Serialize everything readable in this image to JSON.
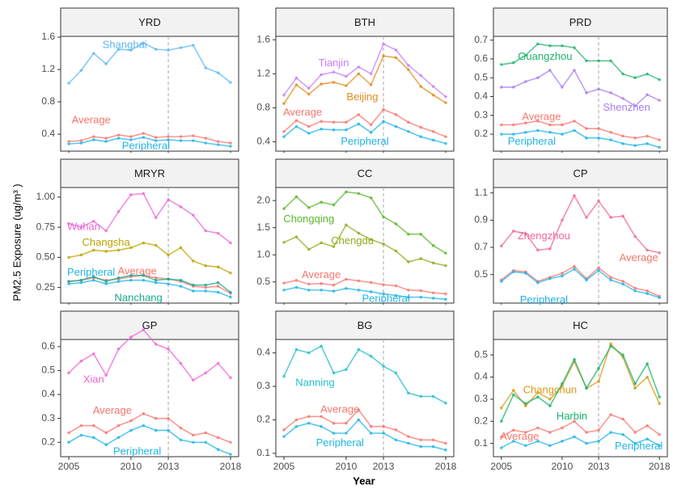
{
  "x_label": "Year",
  "y_label": "PM2.5 Exposure (ug/m³ )",
  "chart_data": [
    {
      "type": "line",
      "title": "YRD",
      "x": [
        2005,
        2006,
        2007,
        2008,
        2009,
        2010,
        2011,
        2012,
        2013,
        2014,
        2015,
        2016,
        2017,
        2018
      ],
      "xlim": [
        2004.35,
        2018.65
      ],
      "xticks": [
        2005,
        2010,
        2013,
        2018
      ],
      "vline": 2013,
      "ylim": [
        0.19,
        1.61
      ],
      "yticks": [
        0.4,
        0.8,
        1.2,
        1.6
      ],
      "series": [
        {
          "name": "Shanghai",
          "color": "#5bb8f0",
          "values": [
            1.03,
            1.19,
            1.4,
            1.27,
            1.45,
            1.44,
            1.53,
            1.45,
            1.44,
            1.47,
            1.5,
            1.22,
            1.16,
            1.04
          ]
        },
        {
          "name": "Average",
          "color": "#f8766d",
          "values": [
            0.31,
            0.32,
            0.37,
            0.35,
            0.39,
            0.37,
            0.41,
            0.36,
            0.37,
            0.37,
            0.38,
            0.35,
            0.31,
            0.29
          ]
        },
        {
          "name": "Peripheral",
          "color": "#1fb4e8",
          "values": [
            0.28,
            0.29,
            0.33,
            0.31,
            0.35,
            0.33,
            0.36,
            0.32,
            0.33,
            0.32,
            0.32,
            0.29,
            0.27,
            0.25
          ]
        }
      ]
    },
    {
      "type": "line",
      "title": "BTH",
      "x": [
        2005,
        2006,
        2007,
        2008,
        2009,
        2010,
        2011,
        2012,
        2013,
        2014,
        2015,
        2016,
        2017,
        2018
      ],
      "xlim": [
        2004.35,
        2018.65
      ],
      "xticks": [
        2005,
        2010,
        2013,
        2018
      ],
      "vline": 2013,
      "ylim": [
        0.29,
        1.64
      ],
      "yticks": [
        0.4,
        0.8,
        1.2,
        1.6
      ],
      "series": [
        {
          "name": "Tianjin",
          "color": "#c77cff",
          "values": [
            0.95,
            1.15,
            1.03,
            1.19,
            1.22,
            1.17,
            1.28,
            1.2,
            1.55,
            1.48,
            1.3,
            1.18,
            1.05,
            0.93
          ]
        },
        {
          "name": "Beijing",
          "color": "#e08b1c",
          "values": [
            0.85,
            1.07,
            0.96,
            1.08,
            1.1,
            1.06,
            1.2,
            1.07,
            1.41,
            1.39,
            1.25,
            1.05,
            0.95,
            0.86
          ]
        },
        {
          "name": "Average",
          "color": "#f8766d",
          "values": [
            0.52,
            0.65,
            0.58,
            0.64,
            0.63,
            0.63,
            0.72,
            0.6,
            0.78,
            0.72,
            0.63,
            0.57,
            0.52,
            0.46
          ]
        },
        {
          "name": "Peripheral",
          "color": "#1fb4e8",
          "values": [
            0.46,
            0.58,
            0.5,
            0.55,
            0.54,
            0.54,
            0.61,
            0.51,
            0.64,
            0.58,
            0.52,
            0.46,
            0.42,
            0.38
          ]
        }
      ]
    },
    {
      "type": "line",
      "title": "PRD",
      "x": [
        2005,
        2006,
        2007,
        2008,
        2009,
        2010,
        2011,
        2012,
        2013,
        2014,
        2015,
        2016,
        2017,
        2018
      ],
      "xlim": [
        2004.35,
        2018.65
      ],
      "xticks": [
        2005,
        2010,
        2013,
        2018
      ],
      "vline": 2013,
      "ylim": [
        0.11,
        0.72
      ],
      "yticks": [
        0.2,
        0.3,
        0.4,
        0.5,
        0.6,
        0.7
      ],
      "series": [
        {
          "name": "Guangzhou",
          "color": "#1fb36a",
          "values": [
            0.57,
            0.58,
            0.62,
            0.68,
            0.67,
            0.67,
            0.66,
            0.59,
            0.59,
            0.59,
            0.52,
            0.5,
            0.52,
            0.49
          ]
        },
        {
          "name": "Shenzhen",
          "color": "#a97ef0",
          "values": [
            0.45,
            0.45,
            0.48,
            0.5,
            0.54,
            0.45,
            0.54,
            0.42,
            0.44,
            0.42,
            0.39,
            0.35,
            0.41,
            0.38
          ]
        },
        {
          "name": "Average",
          "color": "#f8766d",
          "values": [
            0.25,
            0.25,
            0.26,
            0.27,
            0.25,
            0.25,
            0.27,
            0.23,
            0.23,
            0.21,
            0.19,
            0.18,
            0.19,
            0.17
          ]
        },
        {
          "name": "Peripheral",
          "color": "#1fb4e8",
          "values": [
            0.2,
            0.2,
            0.21,
            0.22,
            0.21,
            0.2,
            0.22,
            0.18,
            0.18,
            0.17,
            0.15,
            0.14,
            0.15,
            0.13
          ]
        }
      ]
    },
    {
      "type": "line",
      "title": "MRYR",
      "x": [
        2005,
        2006,
        2007,
        2008,
        2009,
        2010,
        2011,
        2012,
        2013,
        2014,
        2015,
        2016,
        2017,
        2018
      ],
      "xlim": [
        2004.35,
        2018.65
      ],
      "xticks": [
        2005,
        2010,
        2013,
        2018
      ],
      "vline": 2013,
      "ylim": [
        0.12,
        1.08
      ],
      "yticks": [
        0.25,
        {
          "value": 0.5,
          "label": "0.50"
        },
        0.75,
        {
          "value": 1,
          "label": "1.00"
        }
      ],
      "series": [
        {
          "name": "Wuhan",
          "color": "#e96ad6",
          "values": [
            0.78,
            0.75,
            0.8,
            0.72,
            0.88,
            1.02,
            1.03,
            0.83,
            0.98,
            0.92,
            0.85,
            0.72,
            0.7,
            0.62
          ]
        },
        {
          "name": "Changsha",
          "color": "#b8a400",
          "values": [
            0.5,
            0.52,
            0.56,
            0.55,
            0.56,
            0.58,
            0.62,
            0.6,
            0.52,
            0.58,
            0.47,
            0.43,
            0.42,
            0.37
          ]
        },
        {
          "name": "Peripheral",
          "color": "#1fb4e8",
          "values": [
            0.28,
            0.29,
            0.31,
            0.28,
            0.3,
            0.31,
            0.31,
            0.29,
            0.28,
            0.26,
            0.22,
            0.22,
            0.21,
            0.17
          ]
        },
        {
          "name": "Average",
          "color": "#f8766d",
          "values": [
            0.3,
            0.31,
            0.33,
            0.31,
            0.32,
            0.34,
            0.35,
            0.33,
            0.32,
            0.3,
            0.26,
            0.25,
            0.26,
            0.2
          ]
        },
        {
          "name": "Nanchang",
          "color": "#17a98e",
          "values": [
            0.3,
            0.31,
            0.34,
            0.3,
            0.33,
            0.35,
            0.35,
            0.31,
            0.32,
            0.31,
            0.27,
            0.27,
            0.29,
            0.21
          ]
        }
      ]
    },
    {
      "type": "line",
      "title": "CC",
      "x": [
        2005,
        2006,
        2007,
        2008,
        2009,
        2010,
        2011,
        2012,
        2013,
        2014,
        2015,
        2016,
        2017,
        2018
      ],
      "xlim": [
        2004.35,
        2018.65
      ],
      "xticks": [
        2005,
        2010,
        2013,
        2018
      ],
      "vline": 2013,
      "ylim": [
        0.11,
        2.24
      ],
      "yticks": [
        0.5,
        {
          "value": 1,
          "label": "1.0"
        },
        1.5,
        {
          "value": 2,
          "label": "2.0"
        }
      ],
      "series": [
        {
          "name": "Chongqing",
          "color": "#5bb52a",
          "values": [
            1.85,
            2.07,
            1.87,
            1.97,
            1.92,
            2.16,
            2.13,
            2.05,
            1.7,
            1.57,
            1.38,
            1.38,
            1.17,
            1.03
          ]
        },
        {
          "name": "Chengdu",
          "color": "#93a81c",
          "values": [
            1.23,
            1.33,
            1.1,
            1.22,
            1.15,
            1.55,
            1.4,
            1.28,
            1.2,
            1.07,
            0.87,
            0.93,
            0.85,
            0.8
          ]
        },
        {
          "name": "Average",
          "color": "#f8766d",
          "values": [
            0.48,
            0.53,
            0.46,
            0.47,
            0.44,
            0.55,
            0.52,
            0.49,
            0.45,
            0.43,
            0.35,
            0.34,
            0.3,
            0.28
          ]
        },
        {
          "name": "Peripheral",
          "color": "#1fb4e8",
          "values": [
            0.35,
            0.4,
            0.35,
            0.35,
            0.33,
            0.38,
            0.35,
            0.32,
            0.28,
            0.25,
            0.22,
            0.22,
            0.2,
            0.18
          ]
        }
      ]
    },
    {
      "type": "line",
      "title": "CP",
      "x": [
        2005,
        2006,
        2007,
        2008,
        2009,
        2010,
        2011,
        2012,
        2013,
        2014,
        2015,
        2016,
        2017,
        2018
      ],
      "xlim": [
        2004.35,
        2018.65
      ],
      "xticks": [
        2005,
        2010,
        2013,
        2018
      ],
      "vline": 2013,
      "ylim": [
        0.29,
        1.14
      ],
      "yticks": [
        0.5,
        0.7,
        0.9,
        1.1
      ],
      "series": [
        {
          "name": "Zhengzhou",
          "color": "#f0679a",
          "values": [
            0.71,
            0.82,
            0.8,
            0.68,
            0.69,
            0.9,
            1.08,
            0.92,
            1.04,
            0.92,
            0.93,
            0.78,
            0.68,
            0.66
          ]
        },
        {
          "name": "Average",
          "color": "#f8766d",
          "values": [
            0.46,
            0.53,
            0.52,
            0.45,
            0.48,
            0.51,
            0.56,
            0.47,
            0.55,
            0.48,
            0.45,
            0.4,
            0.38,
            0.34
          ]
        },
        {
          "name": "Peripheral",
          "color": "#1fb4e8",
          "values": [
            0.45,
            0.52,
            0.51,
            0.44,
            0.47,
            0.49,
            0.54,
            0.46,
            0.53,
            0.46,
            0.43,
            0.38,
            0.36,
            0.33
          ]
        }
      ]
    },
    {
      "type": "line",
      "title": "GP",
      "x": [
        2005,
        2006,
        2007,
        2008,
        2009,
        2010,
        2011,
        2012,
        2013,
        2014,
        2015,
        2016,
        2017,
        2018
      ],
      "xlim": [
        2004.35,
        2018.65
      ],
      "xticks": [
        2005,
        2010,
        2013,
        2018
      ],
      "vline": 2013,
      "ylim": [
        0.14,
        0.63
      ],
      "yticks": [
        0.2,
        0.3,
        0.4,
        0.5,
        0.6
      ],
      "series": [
        {
          "name": "Xian",
          "color": "#f066d4",
          "values": [
            0.49,
            0.54,
            0.57,
            0.48,
            0.59,
            0.64,
            0.67,
            0.61,
            0.59,
            0.53,
            0.46,
            0.49,
            0.53,
            0.47
          ]
        },
        {
          "name": "Average",
          "color": "#f8766d",
          "values": [
            0.24,
            0.27,
            0.27,
            0.24,
            0.27,
            0.29,
            0.32,
            0.3,
            0.3,
            0.26,
            0.23,
            0.24,
            0.22,
            0.2
          ]
        },
        {
          "name": "Peripheral",
          "color": "#1fb4e8",
          "values": [
            0.2,
            0.23,
            0.22,
            0.19,
            0.22,
            0.25,
            0.27,
            0.25,
            0.25,
            0.21,
            0.2,
            0.2,
            0.17,
            0.15
          ]
        }
      ]
    },
    {
      "type": "line",
      "title": "BG",
      "x": [
        2005,
        2006,
        2007,
        2008,
        2009,
        2010,
        2011,
        2012,
        2013,
        2014,
        2015,
        2016,
        2017,
        2018
      ],
      "xlim": [
        2004.35,
        2018.65
      ],
      "xticks": [
        2005,
        2010,
        2013,
        2018
      ],
      "vline": 2013,
      "ylim": [
        0.09,
        0.44
      ],
      "yticks": [
        0.1,
        0.2,
        0.3,
        0.4
      ],
      "series": [
        {
          "name": "Nanning",
          "color": "#22c0c8",
          "values": [
            0.33,
            0.41,
            0.4,
            0.42,
            0.34,
            0.35,
            0.41,
            0.39,
            0.36,
            0.34,
            0.28,
            0.27,
            0.27,
            0.25
          ]
        },
        {
          "name": "Average",
          "color": "#f8766d",
          "values": [
            0.17,
            0.2,
            0.21,
            0.21,
            0.19,
            0.19,
            0.23,
            0.18,
            0.18,
            0.17,
            0.15,
            0.14,
            0.14,
            0.13
          ]
        },
        {
          "name": "Peripheral",
          "color": "#1fb4e8",
          "values": [
            0.15,
            0.18,
            0.19,
            0.18,
            0.16,
            0.16,
            0.2,
            0.16,
            0.16,
            0.14,
            0.13,
            0.12,
            0.12,
            0.11
          ]
        }
      ]
    },
    {
      "type": "line",
      "title": "HC",
      "x": [
        2005,
        2006,
        2007,
        2008,
        2009,
        2010,
        2011,
        2012,
        2013,
        2014,
        2015,
        2016,
        2017,
        2018
      ],
      "xlim": [
        2004.35,
        2018.65
      ],
      "xticks": [
        2005,
        2010,
        2013,
        2018
      ],
      "vline": 2013,
      "ylim": [
        0.04,
        0.57
      ],
      "yticks": [
        0.1,
        0.2,
        0.3,
        0.4,
        0.5
      ],
      "series": [
        {
          "name": "Changchun",
          "color": "#d99a12",
          "values": [
            0.26,
            0.34,
            0.27,
            0.33,
            0.3,
            0.36,
            0.47,
            0.35,
            0.38,
            0.55,
            0.49,
            0.35,
            0.4,
            0.28
          ]
        },
        {
          "name": "Harbin",
          "color": "#19b46e",
          "values": [
            0.2,
            0.32,
            0.28,
            0.31,
            0.27,
            0.37,
            0.48,
            0.35,
            0.44,
            0.54,
            0.5,
            0.37,
            0.46,
            0.31
          ]
        },
        {
          "name": "Average",
          "color": "#f8766d",
          "values": [
            0.13,
            0.16,
            0.15,
            0.17,
            0.15,
            0.17,
            0.2,
            0.15,
            0.16,
            0.23,
            0.21,
            0.15,
            0.18,
            0.14
          ]
        },
        {
          "name": "Peripheral",
          "color": "#1fb4e8",
          "values": [
            0.08,
            0.11,
            0.09,
            0.11,
            0.09,
            0.11,
            0.13,
            0.1,
            0.11,
            0.15,
            0.14,
            0.1,
            0.12,
            0.09
          ]
        }
      ]
    }
  ]
}
